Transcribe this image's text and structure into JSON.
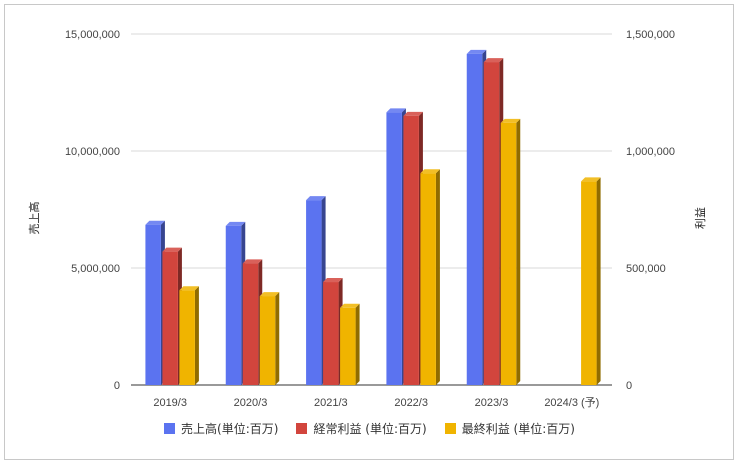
{
  "chart_data": {
    "type": "bar",
    "title": "",
    "categories": [
      "2019/3",
      "2020/3",
      "2021/3",
      "2022/3",
      "2023/3",
      "2024/3 (予)"
    ],
    "y_left": {
      "label": "売上高",
      "range": [
        0,
        15000000
      ],
      "ticks": [
        "0",
        "5,000,000",
        "10,000,000",
        "15,000,000"
      ]
    },
    "y_right": {
      "label": "利益",
      "range": [
        0,
        1500000
      ],
      "ticks": [
        "0",
        "500,000",
        "1,000,000",
        "1,500,000"
      ]
    },
    "series": [
      {
        "name": "売上高(単位:百万)",
        "axis": "left",
        "color": "#5b73f0",
        "values": [
          6850000,
          6800000,
          7900000,
          11650000,
          14150000,
          null
        ]
      },
      {
        "name": "経常利益 (単位:百万)",
        "axis": "right",
        "color": "#d2453d",
        "values": [
          570000,
          520000,
          440000,
          1150000,
          1380000,
          null
        ]
      },
      {
        "name": "最終利益 (単位:百万)",
        "axis": "right",
        "color": "#f0b400",
        "values": [
          405000,
          380000,
          330000,
          905000,
          1120000,
          870000
        ]
      }
    ],
    "grid": true,
    "legend_position": "bottom"
  }
}
